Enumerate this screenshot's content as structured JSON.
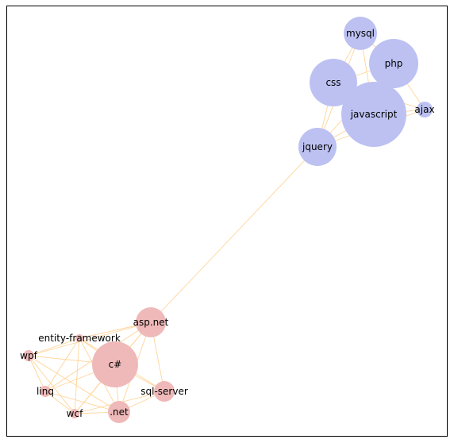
{
  "colors": {
    "edge": "#ffd59a",
    "cluster_web": "#bcc1f2",
    "cluster_dotnet": "#efb9b9",
    "frame": "#000000"
  },
  "nodes": [
    {
      "id": "mysql",
      "label": "mysql",
      "cluster": "web"
    },
    {
      "id": "php",
      "label": "php",
      "cluster": "web"
    },
    {
      "id": "css",
      "label": "css",
      "cluster": "web"
    },
    {
      "id": "javascript",
      "label": "javascript",
      "cluster": "web"
    },
    {
      "id": "ajax",
      "label": "ajax",
      "cluster": "web"
    },
    {
      "id": "jquery",
      "label": "jquery",
      "cluster": "web"
    },
    {
      "id": "asp.net",
      "label": "asp.net",
      "cluster": "dotnet"
    },
    {
      "id": "entity-framework",
      "label": "entity-framework",
      "cluster": "dotnet"
    },
    {
      "id": "wpf",
      "label": "wpf",
      "cluster": "dotnet"
    },
    {
      "id": "c#",
      "label": "c#",
      "cluster": "dotnet"
    },
    {
      "id": "linq",
      "label": "linq",
      "cluster": "dotnet"
    },
    {
      "id": "sql-server",
      "label": "sql-server",
      "cluster": "dotnet"
    },
    {
      "id": "wcf",
      "label": "wcf",
      "cluster": "dotnet"
    },
    {
      "id": ".net",
      "label": ".net",
      "cluster": "dotnet"
    }
  ],
  "edges": [
    [
      "mysql",
      "php"
    ],
    [
      "mysql",
      "css"
    ],
    [
      "mysql",
      "javascript"
    ],
    [
      "mysql",
      "jquery"
    ],
    [
      "php",
      "css"
    ],
    [
      "php",
      "javascript"
    ],
    [
      "php",
      "ajax"
    ],
    [
      "php",
      "jquery"
    ],
    [
      "css",
      "javascript"
    ],
    [
      "css",
      "jquery"
    ],
    [
      "css",
      "ajax"
    ],
    [
      "javascript",
      "ajax"
    ],
    [
      "javascript",
      "jquery"
    ],
    [
      "ajax",
      "jquery"
    ],
    [
      "jquery",
      "asp.net"
    ],
    [
      "asp.net",
      "entity-framework"
    ],
    [
      "asp.net",
      "wpf"
    ],
    [
      "asp.net",
      "c#"
    ],
    [
      "asp.net",
      "linq"
    ],
    [
      "asp.net",
      "sql-server"
    ],
    [
      "asp.net",
      "wcf"
    ],
    [
      "asp.net",
      ".net"
    ],
    [
      "entity-framework",
      "wpf"
    ],
    [
      "entity-framework",
      "c#"
    ],
    [
      "entity-framework",
      "linq"
    ],
    [
      "entity-framework",
      "sql-server"
    ],
    [
      "entity-framework",
      "wcf"
    ],
    [
      "entity-framework",
      ".net"
    ],
    [
      "wpf",
      "c#"
    ],
    [
      "wpf",
      "linq"
    ],
    [
      "wpf",
      "wcf"
    ],
    [
      "wpf",
      ".net"
    ],
    [
      "c#",
      "linq"
    ],
    [
      "c#",
      "sql-server"
    ],
    [
      "c#",
      "wcf"
    ],
    [
      "c#",
      ".net"
    ],
    [
      "linq",
      "wcf"
    ],
    [
      "linq",
      ".net"
    ],
    [
      "sql-server",
      "wcf"
    ],
    [
      "sql-server",
      ".net"
    ],
    [
      "wcf",
      ".net"
    ]
  ]
}
